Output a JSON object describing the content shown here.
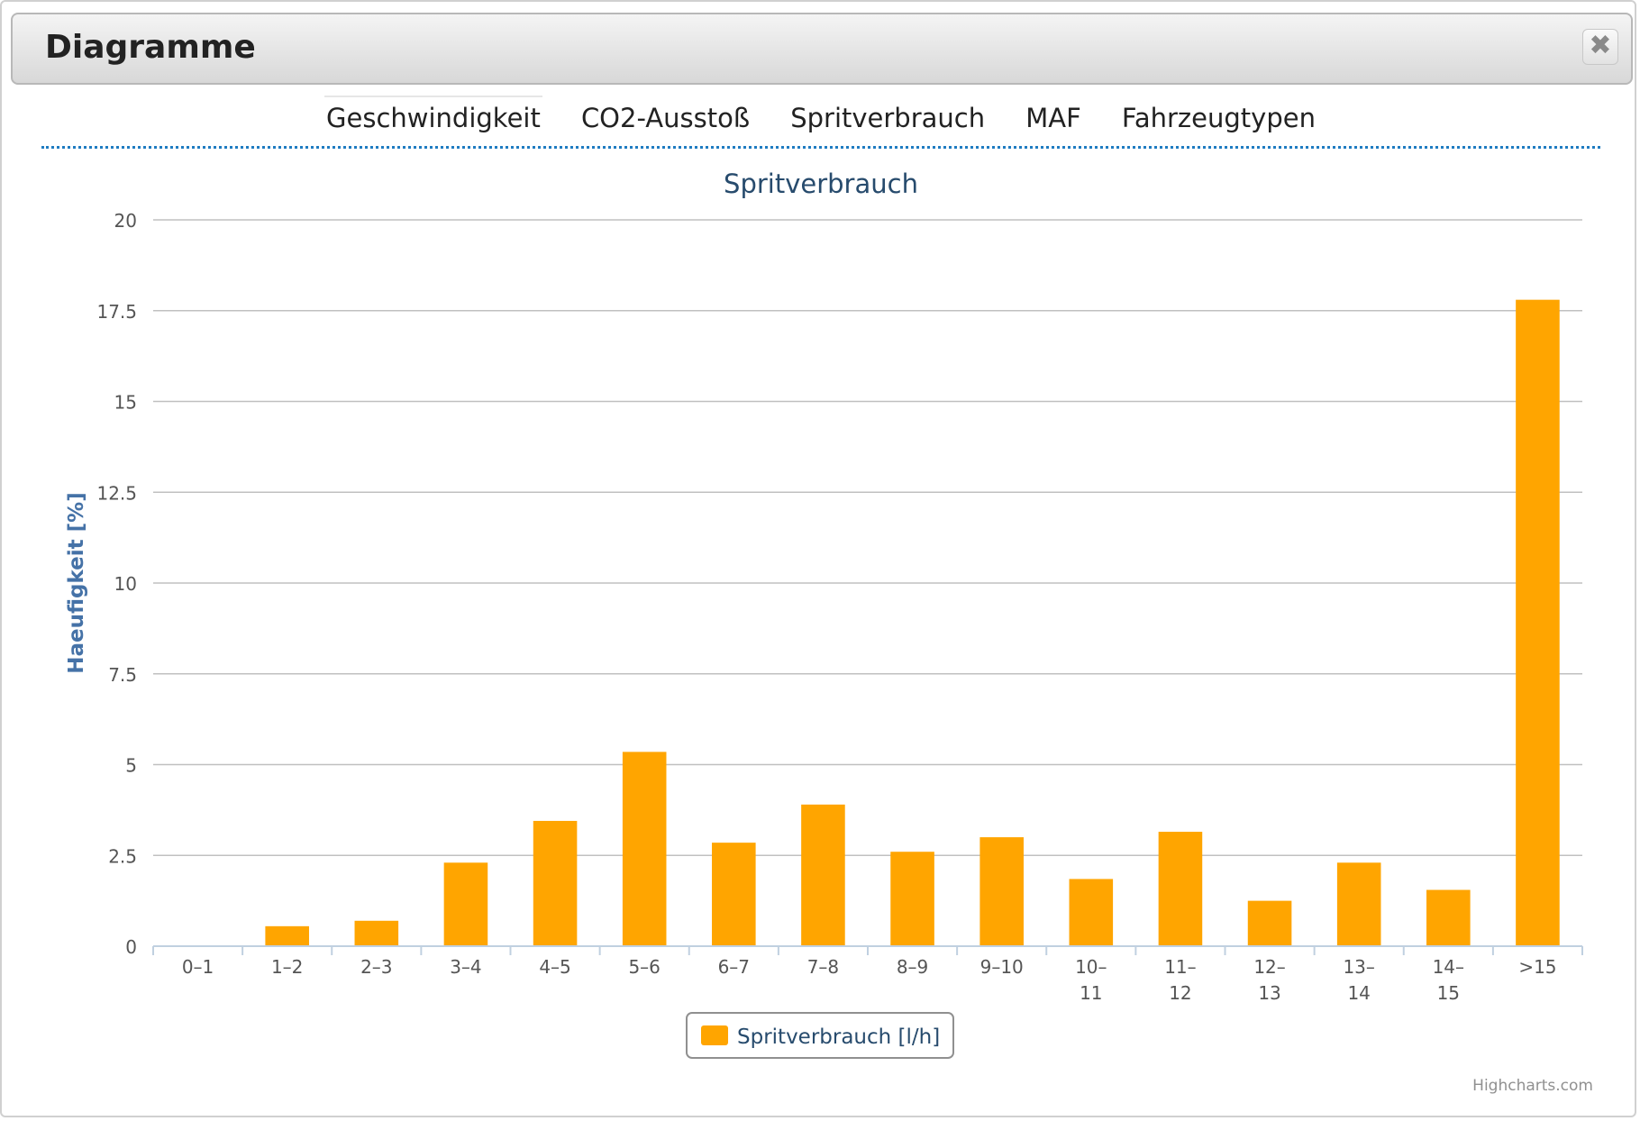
{
  "dialog": {
    "title": "Diagramme",
    "close_icon": "close-icon"
  },
  "tabs": [
    {
      "label": "Geschwindigkeit",
      "active": true
    },
    {
      "label": "CO2-Ausstoß",
      "active": false
    },
    {
      "label": "Spritverbrauch",
      "active": false
    },
    {
      "label": "MAF",
      "active": false
    },
    {
      "label": "Fahrzeugtypen",
      "active": false
    }
  ],
  "chart_data": {
    "type": "bar",
    "title": "Spritverbrauch",
    "ylabel": "Haeufigkeit [%]",
    "xlabel": "",
    "ylim": [
      0,
      20
    ],
    "yticks": [
      "0",
      "2.5",
      "5",
      "7.5",
      "10",
      "12.5",
      "15",
      "17.5",
      "20"
    ],
    "grid": true,
    "legend_position": "bottom-center",
    "credit": "Highcharts.com",
    "categories": [
      [
        "0–1"
      ],
      [
        "1–2"
      ],
      [
        "2–3"
      ],
      [
        "3–4"
      ],
      [
        "4–5"
      ],
      [
        "5–6"
      ],
      [
        "6–7"
      ],
      [
        "7–8"
      ],
      [
        "8–9"
      ],
      [
        "9–10"
      ],
      [
        "10–",
        "11"
      ],
      [
        "11–",
        "12"
      ],
      [
        "12–",
        "13"
      ],
      [
        "13–",
        "14"
      ],
      [
        "14–",
        "15"
      ],
      [
        ">15"
      ]
    ],
    "series": [
      {
        "name": "Spritverbrauch [l/h]",
        "color": "#ffa500",
        "values": [
          0,
          0.55,
          0.7,
          2.3,
          3.45,
          5.35,
          2.85,
          3.9,
          2.6,
          3.0,
          1.85,
          3.15,
          1.25,
          2.3,
          1.55,
          17.8
        ]
      }
    ],
    "colors": {
      "title": "#274b6d",
      "axis_title": "#4572a7",
      "grid": "#c0c0c0",
      "axis_line": "#c0d0e0",
      "tick_label": "#555555"
    }
  }
}
